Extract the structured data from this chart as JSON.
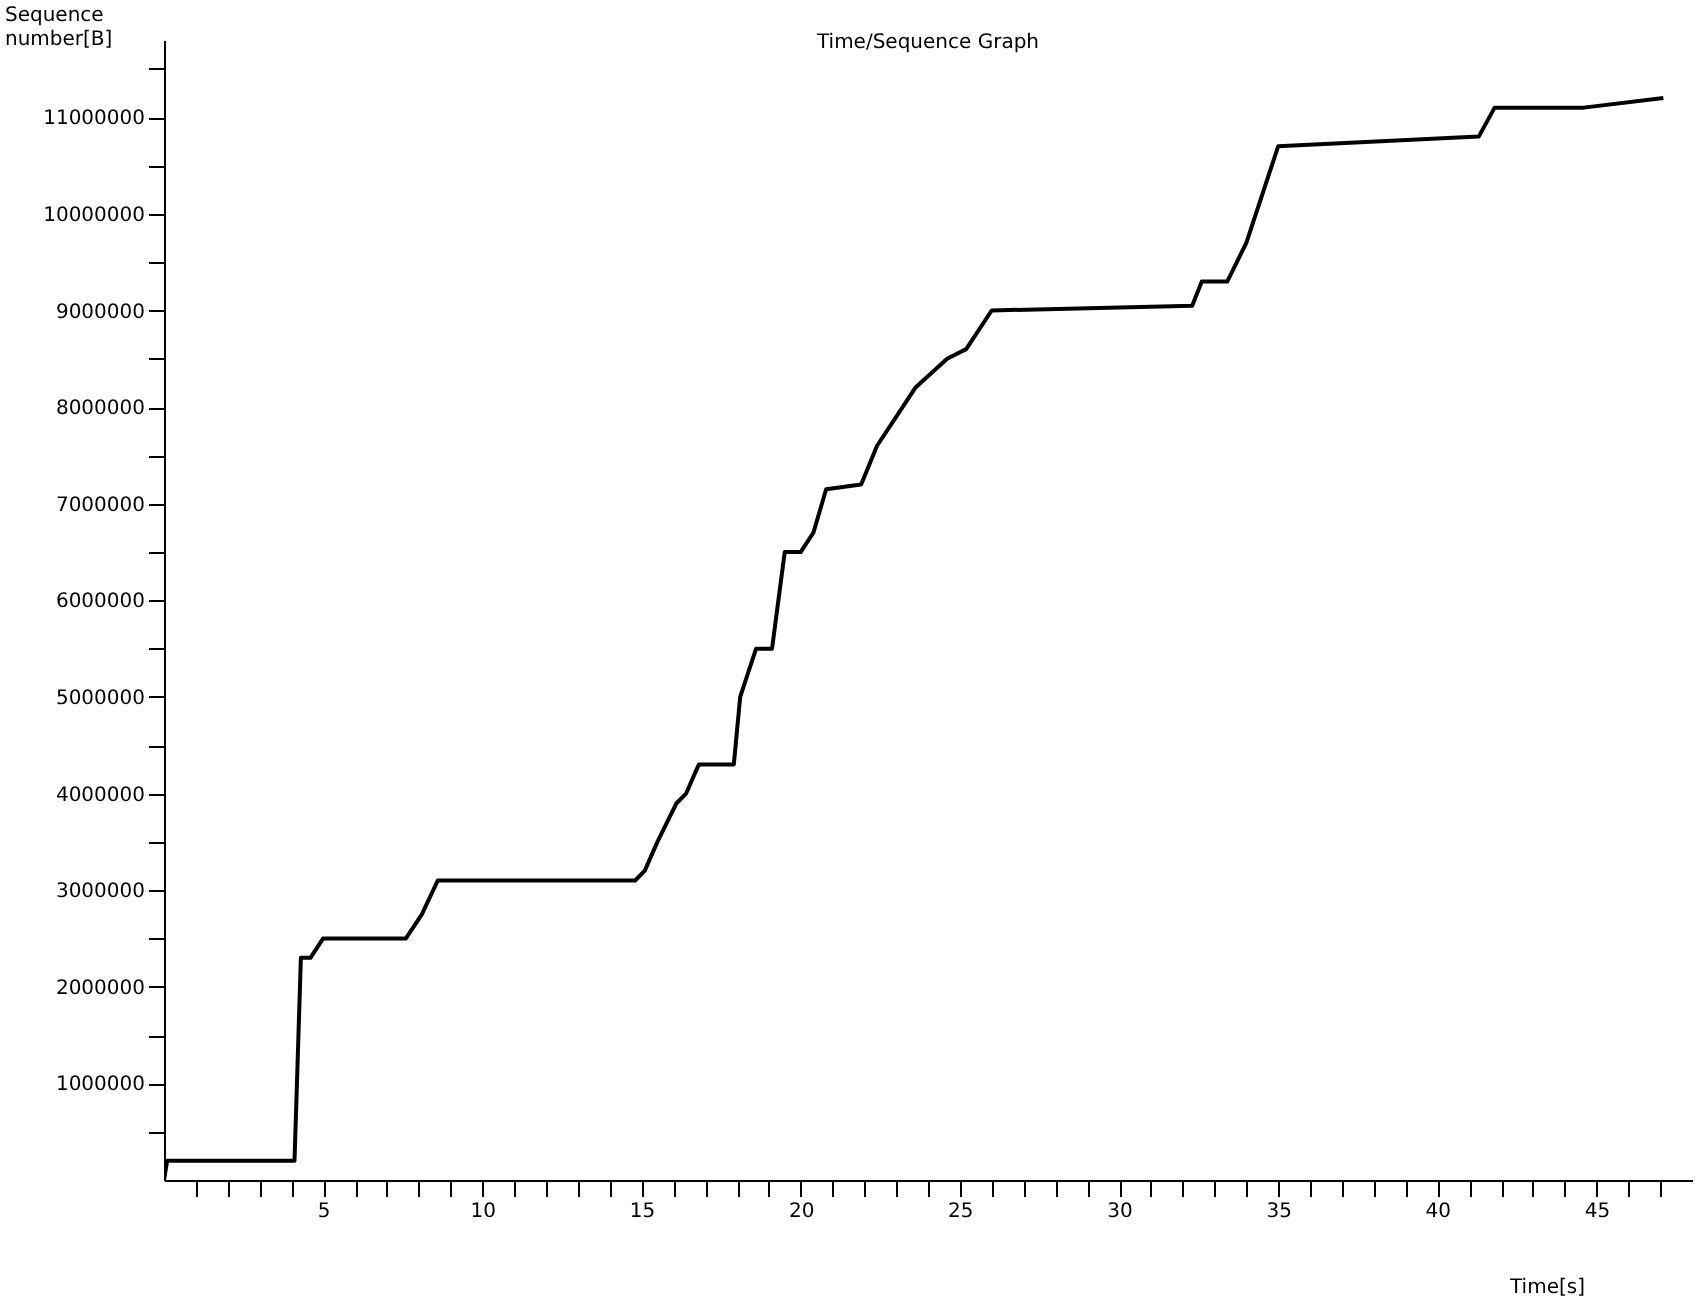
{
  "chart_data": {
    "type": "line",
    "title": "Time/Sequence Graph",
    "xlabel": "Time[s]",
    "ylabel": "Sequence number[B]",
    "x": [
      0,
      0.1,
      4.1,
      4.3,
      4.6,
      5.0,
      7.6,
      8.1,
      8.6,
      14.8,
      15.1,
      15.5,
      16.1,
      16.4,
      16.8,
      17.9,
      18.1,
      18.6,
      19.1,
      19.5,
      20.0,
      20.4,
      20.8,
      21.9,
      22.4,
      23.0,
      23.6,
      24.6,
      25.2,
      26.0,
      32.3,
      32.6,
      33.4,
      34.0,
      34.5,
      35.0,
      41.3,
      41.8,
      44.6,
      47.1
    ],
    "series": [
      {
        "color": "#000000",
        "values": [
          0,
          200000,
          200000,
          2300000,
          2300000,
          2500000,
          2500000,
          2750000,
          3100000,
          3100000,
          3200000,
          3500000,
          3900000,
          4000000,
          4300000,
          4300000,
          5000000,
          5500000,
          5500000,
          6500000,
          6500000,
          6700000,
          7150000,
          7200000,
          7600000,
          7900000,
          8200000,
          8500000,
          8600000,
          9000000,
          9050000,
          9300000,
          9300000,
          9700000,
          10200000,
          10700000,
          10800000,
          11100000,
          11100000,
          11200000
        ]
      }
    ],
    "xlim": [
      0,
      48
    ],
    "ylim": [
      0,
      11800000
    ],
    "xticks": [
      {
        "value": 1,
        "label": null
      },
      {
        "value": 2,
        "label": null
      },
      {
        "value": 3,
        "label": null
      },
      {
        "value": 4,
        "label": null
      },
      5,
      {
        "value": 6,
        "label": null
      },
      {
        "value": 7,
        "label": null
      },
      {
        "value": 8,
        "label": null
      },
      {
        "value": 9,
        "label": null
      },
      10,
      {
        "value": 11,
        "label": null
      },
      {
        "value": 12,
        "label": null
      },
      {
        "value": 13,
        "label": null
      },
      {
        "value": 14,
        "label": null
      },
      15,
      {
        "value": 16,
        "label": null
      },
      {
        "value": 17,
        "label": null
      },
      {
        "value": 18,
        "label": null
      },
      {
        "value": 19,
        "label": null
      },
      20,
      {
        "value": 21,
        "label": null
      },
      {
        "value": 22,
        "label": null
      },
      {
        "value": 23,
        "label": null
      },
      {
        "value": 24,
        "label": null
      },
      25,
      {
        "value": 26,
        "label": null
      },
      {
        "value": 27,
        "label": null
      },
      {
        "value": 28,
        "label": null
      },
      {
        "value": 29,
        "label": null
      },
      30,
      {
        "value": 31,
        "label": null
      },
      {
        "value": 32,
        "label": null
      },
      {
        "value": 33,
        "label": null
      },
      {
        "value": 34,
        "label": null
      },
      35,
      {
        "value": 36,
        "label": null
      },
      {
        "value": 37,
        "label": null
      },
      {
        "value": 38,
        "label": null
      },
      {
        "value": 39,
        "label": null
      },
      40,
      {
        "value": 41,
        "label": null
      },
      {
        "value": 42,
        "label": null
      },
      {
        "value": 43,
        "label": null
      },
      {
        "value": 44,
        "label": null
      },
      45,
      {
        "value": 46,
        "label": null
      },
      {
        "value": 47,
        "label": null
      }
    ],
    "yticks": [
      {
        "value": 500000,
        "label": null
      },
      1000000,
      {
        "value": 1500000,
        "label": null
      },
      2000000,
      {
        "value": 2500000,
        "label": null
      },
      3000000,
      {
        "value": 3500000,
        "label": null
      },
      4000000,
      {
        "value": 4500000,
        "label": null
      },
      5000000,
      {
        "value": 5500000,
        "label": null
      },
      6000000,
      {
        "value": 6500000,
        "label": null
      },
      7000000,
      {
        "value": 7500000,
        "label": null
      },
      8000000,
      {
        "value": 8500000,
        "label": null
      },
      9000000,
      {
        "value": 9500000,
        "label": null
      },
      10000000,
      {
        "value": 10500000,
        "label": null
      },
      11000000,
      {
        "value": 11500000,
        "label": null
      }
    ],
    "grid": false,
    "marker": "none",
    "line_style": "solid"
  }
}
